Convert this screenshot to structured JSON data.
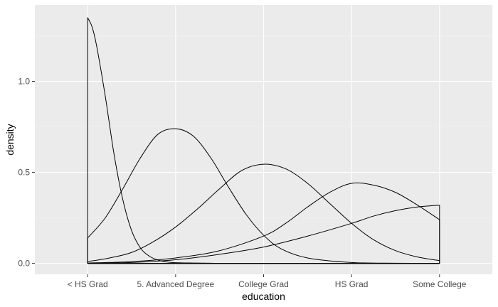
{
  "chart_data": {
    "type": "line",
    "xlabel": "education",
    "ylabel": "density",
    "x_categories": [
      "< HS Grad",
      "5. Advanced Degree",
      "College Grad",
      "HS Grad",
      "Some College"
    ],
    "x_positions": [
      1,
      2,
      3,
      4,
      5
    ],
    "xlim": [
      0.4,
      5.6
    ],
    "ylim": [
      -0.06,
      1.42
    ],
    "y_ticks": [
      0.0,
      0.5,
      1.0
    ],
    "y_tick_labels": [
      "0.0",
      "0.5",
      "1.0"
    ],
    "grid": true,
    "legend": "none",
    "colors": {
      "panel_background": "#ebebeb",
      "grid_major": "#ffffff",
      "grid_minor": "#f5f5f5",
      "line": "#000000"
    },
    "series": [
      {
        "x": [
          1.0,
          1.05,
          1.1,
          1.2,
          1.3,
          1.4,
          1.5,
          1.6,
          1.7,
          1.8,
          1.9,
          2.0,
          2.2,
          2.4,
          2.6,
          3.0,
          3.5,
          4.0,
          4.5,
          5.0
        ],
        "y": [
          1.35,
          1.3,
          1.2,
          0.92,
          0.6,
          0.35,
          0.18,
          0.085,
          0.04,
          0.018,
          0.008,
          0.004,
          0.002,
          0.001,
          0.0,
          0.0,
          0.0,
          0.0,
          0.0,
          0.0
        ]
      },
      {
        "x": [
          1.0,
          1.2,
          1.4,
          1.6,
          1.8,
          2.0,
          2.2,
          2.4,
          2.6,
          2.8,
          3.0,
          3.2,
          3.5,
          4.0,
          4.5,
          5.0
        ],
        "y": [
          0.14,
          0.25,
          0.41,
          0.58,
          0.71,
          0.74,
          0.7,
          0.58,
          0.42,
          0.27,
          0.155,
          0.08,
          0.03,
          0.005,
          0.001,
          0.0
        ]
      },
      {
        "x": [
          1.0,
          1.25,
          1.5,
          1.75,
          2.0,
          2.25,
          2.5,
          2.75,
          3.0,
          3.25,
          3.5,
          3.75,
          4.0,
          4.25,
          4.5,
          4.75,
          5.0
        ],
        "y": [
          0.01,
          0.03,
          0.06,
          0.12,
          0.2,
          0.3,
          0.41,
          0.51,
          0.545,
          0.52,
          0.44,
          0.33,
          0.22,
          0.13,
          0.07,
          0.035,
          0.015
        ]
      },
      {
        "x": [
          1.0,
          1.5,
          2.0,
          2.5,
          3.0,
          3.25,
          3.5,
          3.75,
          4.0,
          4.25,
          4.5,
          4.75,
          5.0
        ],
        "y": [
          0.002,
          0.01,
          0.03,
          0.07,
          0.15,
          0.22,
          0.31,
          0.39,
          0.44,
          0.43,
          0.39,
          0.32,
          0.24
        ]
      },
      {
        "x": [
          1.0,
          1.5,
          2.0,
          2.5,
          3.0,
          3.5,
          4.0,
          4.25,
          4.5,
          4.75,
          5.0
        ],
        "y": [
          0.001,
          0.005,
          0.02,
          0.05,
          0.09,
          0.15,
          0.22,
          0.26,
          0.29,
          0.31,
          0.32
        ]
      }
    ]
  }
}
